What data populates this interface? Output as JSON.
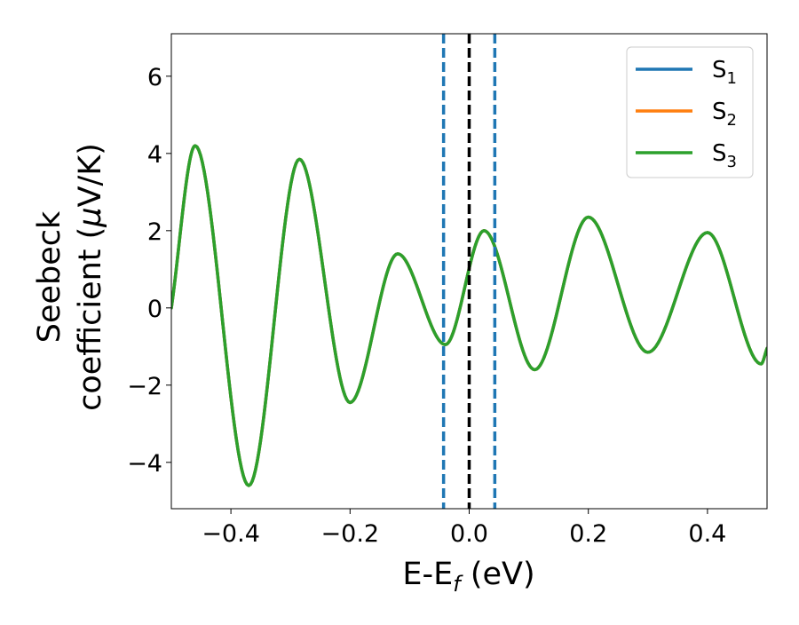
{
  "chart_data": {
    "type": "line",
    "title": "",
    "xlabel": "E-E",
    "xlabel_sub": "f",
    "xlabel_unit": " (eV)",
    "ylabel_line1": "Seebeck",
    "ylabel_line2": "coefficient  (",
    "ylabel_mu": "μ",
    "ylabel_unit": "V/K)",
    "xlim": [
      -0.5,
      0.5
    ],
    "ylim": [
      -5.2,
      7.1
    ],
    "xticks": [
      -0.4,
      -0.2,
      0.0,
      0.2,
      0.4
    ],
    "xtick_labels": [
      "−0.4",
      "−0.2",
      "0.0",
      "0.2",
      "0.4"
    ],
    "yticks": [
      -4,
      -2,
      0,
      2,
      4,
      6
    ],
    "ytick_labels": [
      "−4",
      "−2",
      "0",
      "2",
      "4",
      "6"
    ],
    "grid": false,
    "legend_position": "top-right",
    "series": [
      {
        "name": "S",
        "sub": "1",
        "color": "#1f77b4",
        "x": [
          -0.5,
          -0.46,
          -0.37,
          -0.285,
          -0.2,
          -0.12,
          -0.04,
          0.025,
          0.11,
          0.2,
          0.3,
          0.4,
          0.49,
          0.5
        ],
        "y": [
          0.0,
          4.2,
          -4.6,
          3.85,
          -2.45,
          1.4,
          -0.95,
          2.0,
          -1.6,
          2.35,
          -1.15,
          1.95,
          -1.45,
          -1.05
        ]
      },
      {
        "name": "S",
        "sub": "2",
        "color": "#ff7f0e",
        "x": [
          -0.5,
          -0.46,
          -0.37,
          -0.285,
          -0.2,
          -0.12,
          -0.04,
          0.025,
          0.11,
          0.2,
          0.3,
          0.4,
          0.49,
          0.5
        ],
        "y": [
          0.0,
          4.2,
          -4.6,
          3.85,
          -2.45,
          1.4,
          -0.95,
          2.0,
          -1.6,
          2.35,
          -1.15,
          1.95,
          -1.45,
          -1.05
        ]
      },
      {
        "name": "S",
        "sub": "3",
        "color": "#2ca02c",
        "x": [
          -0.5,
          -0.46,
          -0.37,
          -0.285,
          -0.2,
          -0.12,
          -0.04,
          0.025,
          0.11,
          0.2,
          0.3,
          0.4,
          0.49,
          0.5
        ],
        "y": [
          0.0,
          4.2,
          -4.6,
          3.85,
          -2.45,
          1.4,
          -0.95,
          2.0,
          -1.6,
          2.35,
          -1.15,
          1.95,
          -1.45,
          -1.05
        ]
      }
    ],
    "vlines": [
      {
        "x": -0.043,
        "color": "#1f77b4",
        "style": "dashed"
      },
      {
        "x": 0.0,
        "color": "#000000",
        "style": "dashed"
      },
      {
        "x": 0.043,
        "color": "#1f77b4",
        "style": "dashed"
      }
    ]
  }
}
